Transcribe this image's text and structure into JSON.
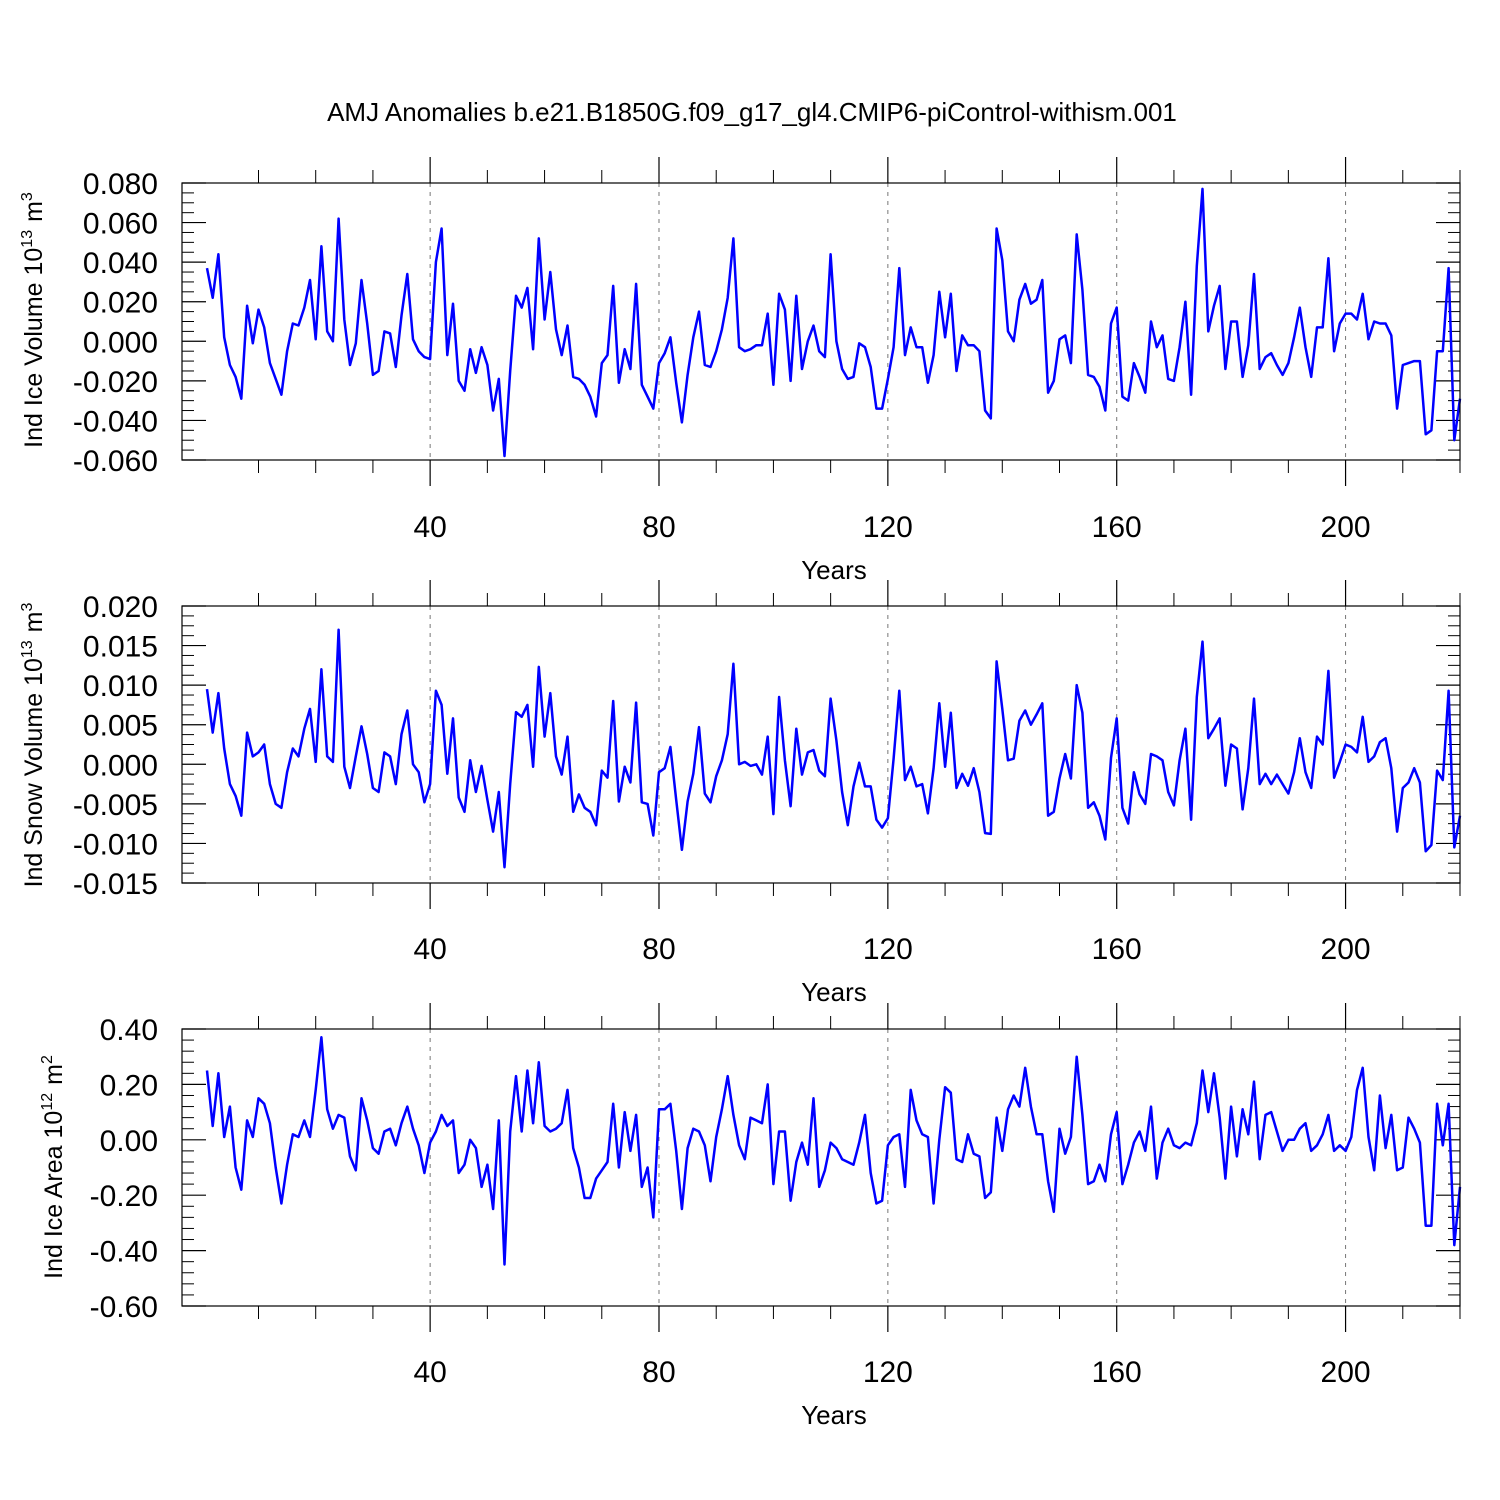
{
  "figure": {
    "title": "AMJ Anomalies b.e21.B1850G.f09_g17_gl4.CMIP6-piControl-withism.001",
    "line_color": "#0000ff"
  },
  "chart_data": [
    {
      "type": "line",
      "title": "",
      "xlabel": "Years",
      "ylabel": "Ind Ice Volume 10",
      "ylabel_exponent": "13",
      "ylabel_unit": "m",
      "ylabel_unit_exponent": "3",
      "xlim": [
        1,
        220
      ],
      "ylim": [
        -0.06,
        0.08
      ],
      "grid": "vertical dashed at major x ticks",
      "x_major_ticks": [
        40,
        80,
        120,
        160,
        200
      ],
      "x_tick_labels": [
        "40",
        "80",
        "120",
        "160",
        "200"
      ],
      "y_major_ticks": [
        -0.06,
        -0.04,
        -0.02,
        0.0,
        0.02,
        0.04,
        0.06,
        0.08
      ],
      "y_tick_labels": [
        "-0.060",
        "-0.040",
        "-0.020",
        "0.000",
        "0.020",
        "0.040",
        "0.060",
        "0.080"
      ],
      "series": [
        {
          "name": "Ind Ice Volume",
          "x_start": 1,
          "values": [
            0.037,
            0.022,
            0.044,
            0.002,
            -0.012,
            -0.018,
            -0.029,
            0.018,
            -0.001,
            0.016,
            0.007,
            -0.011,
            -0.019,
            -0.027,
            -0.005,
            0.009,
            0.008,
            0.017,
            0.031,
            0.001,
            0.048,
            0.005,
            0.0,
            0.062,
            0.011,
            -0.012,
            -0.001,
            0.031,
            0.009,
            -0.017,
            -0.015,
            0.005,
            0.004,
            -0.013,
            0.013,
            0.034,
            0.001,
            -0.005,
            -0.008,
            -0.009,
            0.04,
            0.057,
            -0.007,
            0.019,
            -0.02,
            -0.025,
            -0.004,
            -0.016,
            -0.003,
            -0.012,
            -0.035,
            -0.019,
            -0.058,
            -0.015,
            0.023,
            0.017,
            0.027,
            -0.004,
            0.052,
            0.011,
            0.035,
            0.006,
            -0.007,
            0.008,
            -0.018,
            -0.019,
            -0.022,
            -0.028,
            -0.038,
            -0.011,
            -0.007,
            0.028,
            -0.021,
            -0.004,
            -0.014,
            0.029,
            -0.022,
            -0.028,
            -0.034,
            -0.011,
            -0.006,
            0.002,
            -0.021,
            -0.041,
            -0.017,
            0.002,
            0.015,
            -0.012,
            -0.013,
            -0.005,
            0.006,
            0.022,
            0.052,
            -0.003,
            -0.005,
            -0.004,
            -0.002,
            -0.002,
            0.014,
            -0.022,
            0.024,
            0.016,
            -0.02,
            0.023,
            -0.014,
            0.0,
            0.008,
            -0.005,
            -0.008,
            0.044,
            0.0,
            -0.014,
            -0.019,
            -0.018,
            -0.001,
            -0.003,
            -0.013,
            -0.034,
            -0.034,
            -0.019,
            -0.003,
            0.037,
            -0.007,
            0.007,
            -0.003,
            -0.003,
            -0.021,
            -0.007,
            0.025,
            0.002,
            0.024,
            -0.015,
            0.003,
            -0.002,
            -0.002,
            -0.005,
            -0.035,
            -0.039,
            0.057,
            0.041,
            0.005,
            0.0,
            0.021,
            0.029,
            0.019,
            0.021,
            0.031,
            -0.026,
            -0.02,
            0.001,
            0.003,
            -0.011,
            0.054,
            0.026,
            -0.017,
            -0.018,
            -0.023,
            -0.035,
            0.009,
            0.017,
            -0.028,
            -0.03,
            -0.011,
            -0.018,
            -0.026,
            0.01,
            -0.003,
            0.003,
            -0.019,
            -0.02,
            -0.003,
            0.02,
            -0.027,
            0.038,
            0.077,
            0.005,
            0.018,
            0.028,
            -0.014,
            0.01,
            0.01,
            -0.018,
            -0.002,
            0.034,
            -0.014,
            -0.008,
            -0.006,
            -0.012,
            -0.017,
            -0.011,
            0.002,
            0.017,
            -0.003,
            -0.018,
            0.007,
            0.007,
            0.042,
            -0.005,
            0.009,
            0.014,
            0.014,
            0.011,
            0.024,
            0.001,
            0.01,
            0.009,
            0.009,
            0.003,
            -0.034,
            -0.012,
            -0.011,
            -0.01,
            -0.01,
            -0.047,
            -0.045,
            -0.005,
            -0.005,
            0.037,
            -0.05,
            -0.029
          ]
        }
      ]
    },
    {
      "type": "line",
      "title": "",
      "xlabel": "Years",
      "ylabel": "Ind Snow Volume 10",
      "ylabel_exponent": "13",
      "ylabel_unit": "m",
      "ylabel_unit_exponent": "3",
      "xlim": [
        1,
        220
      ],
      "ylim": [
        -0.015,
        0.02
      ],
      "grid": "vertical dashed at major x ticks",
      "x_major_ticks": [
        40,
        80,
        120,
        160,
        200
      ],
      "x_tick_labels": [
        "40",
        "80",
        "120",
        "160",
        "200"
      ],
      "y_major_ticks": [
        -0.015,
        -0.01,
        -0.005,
        0.0,
        0.005,
        0.01,
        0.015,
        0.02
      ],
      "y_tick_labels": [
        "-0.015",
        "-0.010",
        "-0.005",
        "0.000",
        "0.005",
        "0.010",
        "0.015",
        "0.020"
      ],
      "series": [
        {
          "name": "Ind Snow Volume",
          "x_start": 1,
          "values": [
            0.0095,
            0.004,
            0.009,
            0.002,
            -0.0025,
            -0.004,
            -0.0065,
            0.004,
            0.001,
            0.0015,
            0.0025,
            -0.0025,
            -0.005,
            -0.0055,
            -0.001,
            0.002,
            0.001,
            0.0045,
            0.007,
            0.0003,
            0.012,
            0.001,
            0.0003,
            0.017,
            -0.0003,
            -0.003,
            0.001,
            0.0048,
            0.0013,
            -0.003,
            -0.0035,
            0.0015,
            0.001,
            -0.0025,
            0.0038,
            0.0068,
            0.0,
            -0.001,
            -0.0048,
            -0.0025,
            0.0093,
            0.0075,
            -0.0012,
            0.0058,
            -0.0042,
            -0.006,
            0.0005,
            -0.0035,
            -0.0002,
            -0.0045,
            -0.0085,
            -0.0035,
            -0.013,
            -0.0025,
            0.0066,
            0.006,
            0.0075,
            -0.0003,
            0.0123,
            0.0035,
            0.009,
            0.001,
            -0.0013,
            0.0035,
            -0.006,
            -0.0038,
            -0.0055,
            -0.006,
            -0.0077,
            -0.0008,
            -0.0017,
            0.008,
            -0.0047,
            -0.0003,
            -0.0023,
            0.0078,
            -0.0048,
            -0.005,
            -0.009,
            -0.001,
            -0.0005,
            0.0022,
            -0.0045,
            -0.0108,
            -0.0047,
            -0.0012,
            0.0047,
            -0.0037,
            -0.0048,
            -0.0015,
            0.0005,
            0.0038,
            0.0127,
            0.0,
            0.0003,
            -0.0002,
            0.0,
            -0.0013,
            0.0035,
            -0.0063,
            0.0085,
            0.0005,
            -0.0053,
            0.0045,
            -0.0013,
            0.0015,
            0.0018,
            -0.0008,
            -0.0015,
            0.0083,
            0.003,
            -0.0035,
            -0.0077,
            -0.0028,
            0.0002,
            -0.0028,
            -0.0028,
            -0.007,
            -0.008,
            -0.0068,
            0.0007,
            0.0093,
            -0.002,
            -0.0003,
            -0.0028,
            -0.0025,
            -0.0062,
            -0.0005,
            0.0077,
            -0.0003,
            0.0065,
            -0.003,
            -0.0012,
            -0.0027,
            -0.0005,
            -0.0035,
            -0.0087,
            -0.0088,
            0.013,
            0.007,
            0.0005,
            0.0007,
            0.0055,
            0.0068,
            0.005,
            0.0063,
            0.0077,
            -0.0065,
            -0.006,
            -0.0018,
            0.0013,
            -0.0018,
            0.01,
            0.0065,
            -0.0055,
            -0.0048,
            -0.0065,
            -0.0095,
            0.0008,
            0.0058,
            -0.0055,
            -0.0075,
            -0.001,
            -0.0038,
            -0.005,
            0.0013,
            0.001,
            0.0005,
            -0.0035,
            -0.0052,
            0.0005,
            0.0045,
            -0.007,
            0.0085,
            0.0155,
            0.0033,
            0.0045,
            0.0058,
            -0.0027,
            0.0025,
            0.002,
            -0.0057,
            -0.0005,
            0.0083,
            -0.0025,
            -0.0012,
            -0.0025,
            -0.0013,
            -0.0025,
            -0.0037,
            -0.001,
            0.0033,
            -0.001,
            -0.003,
            0.0035,
            0.0025,
            0.0118,
            -0.0017,
            0.0003,
            0.0025,
            0.0022,
            0.0015,
            0.006,
            0.0003,
            0.001,
            0.0028,
            0.0033,
            -0.0005,
            -0.0085,
            -0.003,
            -0.0023,
            -0.0005,
            -0.0023,
            -0.011,
            -0.0102,
            -0.0008,
            -0.002,
            0.0093,
            -0.0105,
            -0.0065
          ]
        }
      ]
    },
    {
      "type": "line",
      "title": "",
      "xlabel": "Years",
      "ylabel": "Ind Ice Area 10",
      "ylabel_exponent": "12",
      "ylabel_unit": "m",
      "ylabel_unit_exponent": "2",
      "xlim": [
        1,
        220
      ],
      "ylim": [
        -0.6,
        0.4
      ],
      "grid": "vertical dashed at major x ticks",
      "x_major_ticks": [
        40,
        80,
        120,
        160,
        200
      ],
      "x_tick_labels": [
        "40",
        "80",
        "120",
        "160",
        "200"
      ],
      "y_major_ticks": [
        -0.6,
        -0.4,
        -0.2,
        0.0,
        0.2,
        0.4
      ],
      "y_tick_labels": [
        "-0.60",
        "-0.40",
        "-0.20",
        "0.00",
        "0.20",
        "0.40"
      ],
      "series": [
        {
          "name": "Ind Ice Area",
          "x_start": 1,
          "values": [
            0.25,
            0.05,
            0.24,
            0.01,
            0.12,
            -0.1,
            -0.18,
            0.07,
            0.01,
            0.15,
            0.13,
            0.06,
            -0.1,
            -0.23,
            -0.09,
            0.02,
            0.01,
            0.07,
            0.01,
            0.18,
            0.37,
            0.11,
            0.04,
            0.09,
            0.08,
            -0.06,
            -0.11,
            0.15,
            0.07,
            -0.03,
            -0.05,
            0.03,
            0.04,
            -0.02,
            0.06,
            0.12,
            0.04,
            -0.02,
            -0.12,
            -0.01,
            0.03,
            0.09,
            0.05,
            0.07,
            -0.12,
            -0.09,
            0.0,
            -0.03,
            -0.17,
            -0.09,
            -0.25,
            0.07,
            -0.45,
            0.03,
            0.23,
            0.03,
            0.25,
            0.06,
            0.28,
            0.05,
            0.03,
            0.04,
            0.06,
            0.18,
            -0.03,
            -0.1,
            -0.21,
            -0.21,
            -0.14,
            -0.11,
            -0.08,
            0.13,
            -0.1,
            0.1,
            -0.04,
            0.09,
            -0.17,
            -0.1,
            -0.28,
            0.11,
            0.11,
            0.13,
            -0.04,
            -0.25,
            -0.03,
            0.04,
            0.03,
            -0.02,
            -0.15,
            0.01,
            0.11,
            0.23,
            0.09,
            -0.02,
            -0.07,
            0.08,
            0.07,
            0.06,
            0.2,
            -0.16,
            0.03,
            0.03,
            -0.22,
            -0.08,
            -0.01,
            -0.09,
            0.15,
            -0.17,
            -0.11,
            -0.01,
            -0.03,
            -0.07,
            -0.08,
            -0.09,
            -0.01,
            0.09,
            -0.12,
            -0.23,
            -0.22,
            -0.02,
            0.01,
            0.02,
            -0.17,
            0.18,
            0.07,
            0.02,
            0.01,
            -0.23,
            0.0,
            0.19,
            0.17,
            -0.07,
            -0.08,
            0.02,
            -0.05,
            -0.06,
            -0.21,
            -0.19,
            0.08,
            -0.04,
            0.11,
            0.16,
            0.12,
            0.26,
            0.12,
            0.02,
            0.02,
            -0.15,
            -0.26,
            0.04,
            -0.05,
            0.01,
            0.3,
            0.09,
            -0.16,
            -0.15,
            -0.09,
            -0.15,
            0.02,
            0.1,
            -0.16,
            -0.09,
            -0.01,
            0.03,
            -0.04,
            0.12,
            -0.14,
            -0.01,
            0.04,
            -0.02,
            -0.03,
            -0.01,
            -0.02,
            0.06,
            0.25,
            0.1,
            0.24,
            0.08,
            -0.14,
            0.12,
            -0.06,
            0.11,
            0.02,
            0.21,
            -0.07,
            0.09,
            0.1,
            0.03,
            -0.04,
            0.0,
            0.0,
            0.04,
            0.06,
            -0.04,
            -0.02,
            0.02,
            0.09,
            -0.04,
            -0.02,
            -0.04,
            0.01,
            0.18,
            0.26,
            0.01,
            -0.11,
            0.16,
            -0.03,
            0.09,
            -0.11,
            -0.1,
            0.08,
            0.04,
            -0.01,
            -0.31,
            -0.31,
            0.13,
            -0.02,
            0.13,
            -0.38,
            -0.17
          ]
        }
      ]
    }
  ]
}
